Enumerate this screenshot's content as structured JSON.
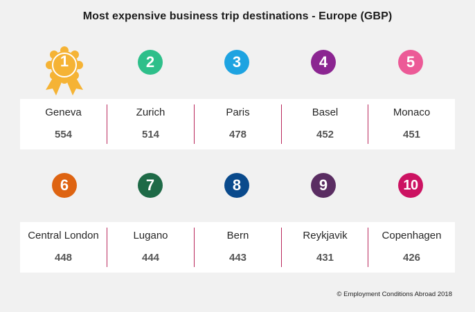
{
  "title": "Most expensive business trip destinations - Europe (GBP)",
  "footer": "© Employment Conditions Abroad 2018",
  "colors": {
    "divider": "#b8265a",
    "gold": "#f5b335"
  },
  "destinations": [
    {
      "rank": "1",
      "city": "Geneva",
      "value": "554",
      "color": "#f5b335",
      "icon": "gold-award-rosette-icon"
    },
    {
      "rank": "2",
      "city": "Zurich",
      "value": "514",
      "color": "#2ebf8a"
    },
    {
      "rank": "3",
      "city": "Paris",
      "value": "478",
      "color": "#1ea3e1"
    },
    {
      "rank": "4",
      "city": "Basel",
      "value": "452",
      "color": "#8b2591"
    },
    {
      "rank": "5",
      "city": "Monaco",
      "value": "451",
      "color": "#ec5a97"
    },
    {
      "rank": "6",
      "city": "Central London",
      "value": "448",
      "color": "#de6412"
    },
    {
      "rank": "7",
      "city": "Lugano",
      "value": "444",
      "color": "#1e6a47"
    },
    {
      "rank": "8",
      "city": "Bern",
      "value": "443",
      "color": "#0a4a8c"
    },
    {
      "rank": "9",
      "city": "Reykjavik",
      "value": "431",
      "color": "#5a2d62"
    },
    {
      "rank": "10",
      "city": "Copenhagen",
      "value": "426",
      "color": "#cc1362"
    }
  ]
}
